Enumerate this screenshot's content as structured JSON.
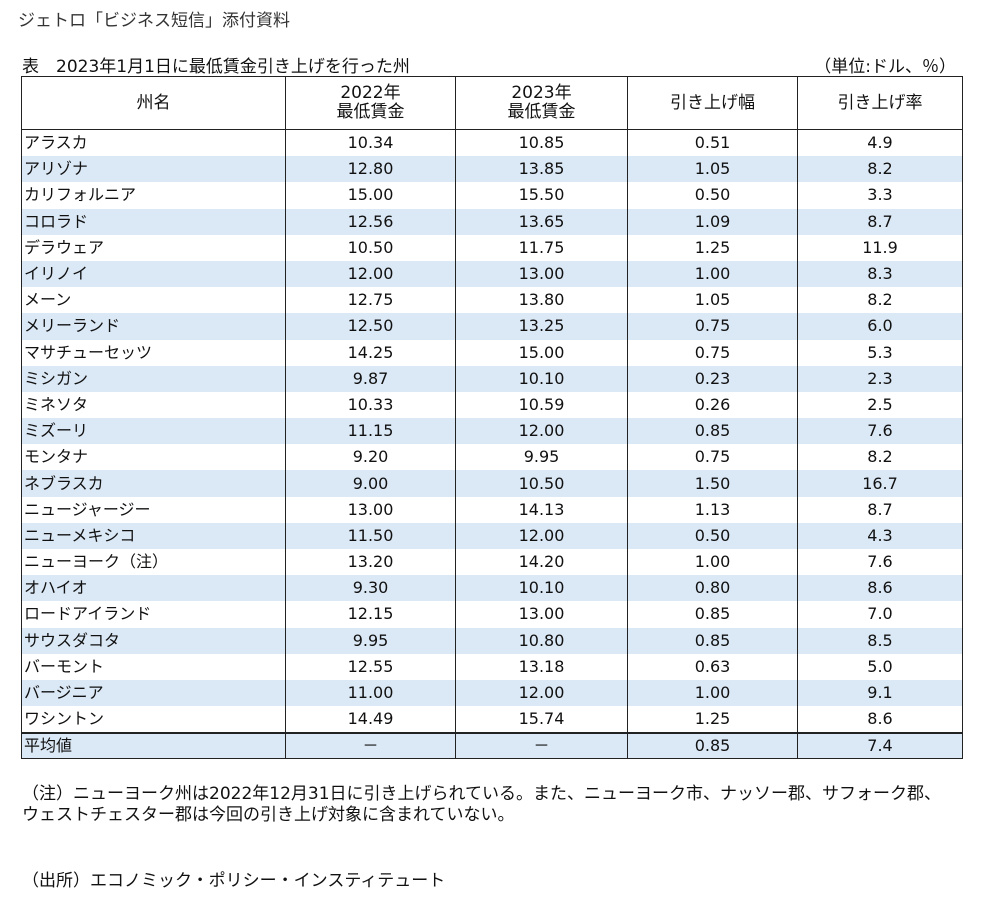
{
  "document": {
    "header_note": "ジェトロ「ビジネス短信」添付資料",
    "table_title": "表　2023年1月1日に最低賃金引き上げを行った州",
    "unit": "（単位:ドル、％）",
    "columns": [
      "州名",
      "2022年\n最低賃金",
      "2023年\n最低賃金",
      "引き上げ幅",
      "引き上げ率"
    ],
    "rows": [
      [
        "アラスカ",
        "10.34",
        "10.85",
        "0.51",
        "4.9"
      ],
      [
        "アリゾナ",
        "12.80",
        "13.85",
        "1.05",
        "8.2"
      ],
      [
        "カリフォルニア",
        "15.00",
        "15.50",
        "0.50",
        "3.3"
      ],
      [
        "コロラド",
        "12.56",
        "13.65",
        "1.09",
        "8.7"
      ],
      [
        "デラウェア",
        "10.50",
        "11.75",
        "1.25",
        "11.9"
      ],
      [
        "イリノイ",
        "12.00",
        "13.00",
        "1.00",
        "8.3"
      ],
      [
        "メーン",
        "12.75",
        "13.80",
        "1.05",
        "8.2"
      ],
      [
        "メリーランド",
        "12.50",
        "13.25",
        "0.75",
        "6.0"
      ],
      [
        "マサチューセッツ",
        "14.25",
        "15.00",
        "0.75",
        "5.3"
      ],
      [
        "ミシガン",
        "9.87",
        "10.10",
        "0.23",
        "2.3"
      ],
      [
        "ミネソタ",
        "10.33",
        "10.59",
        "0.26",
        "2.5"
      ],
      [
        "ミズーリ",
        "11.15",
        "12.00",
        "0.85",
        "7.6"
      ],
      [
        "モンタナ",
        "9.20",
        "9.95",
        "0.75",
        "8.2"
      ],
      [
        "ネブラスカ",
        "9.00",
        "10.50",
        "1.50",
        "16.7"
      ],
      [
        "ニュージャージー",
        "13.00",
        "14.13",
        "1.13",
        "8.7"
      ],
      [
        "ニューメキシコ",
        "11.50",
        "12.00",
        "0.50",
        "4.3"
      ],
      [
        "ニューヨーク（注）",
        "13.20",
        "14.20",
        "1.00",
        "7.6"
      ],
      [
        "オハイオ",
        "9.30",
        "10.10",
        "0.80",
        "8.6"
      ],
      [
        "ロードアイランド",
        "12.15",
        "13.00",
        "0.85",
        "7.0"
      ],
      [
        "サウスダコタ",
        "9.95",
        "10.80",
        "0.85",
        "8.5"
      ],
      [
        "バーモント",
        "12.55",
        "13.18",
        "0.63",
        "5.0"
      ],
      [
        "バージニア",
        "11.00",
        "12.00",
        "1.00",
        "9.1"
      ],
      [
        "ワシントン",
        "14.49",
        "15.74",
        "1.25",
        "8.6"
      ]
    ],
    "average_row": [
      "平均値",
      "－",
      "－",
      "0.85",
      "7.4"
    ],
    "footnote": "（注）ニューヨーク州は2022年12月31日に引き上げられている。また、ニューヨーク市、ナッソー郡、サフォーク郡、ウェストチェスター郡は今回の引き上げ対象に含まれていない。",
    "source": "（出所）エコノミック・ポリシー・インスティテュート"
  },
  "colors": {
    "stripe": "#dbe8f5",
    "border": "#222222"
  }
}
